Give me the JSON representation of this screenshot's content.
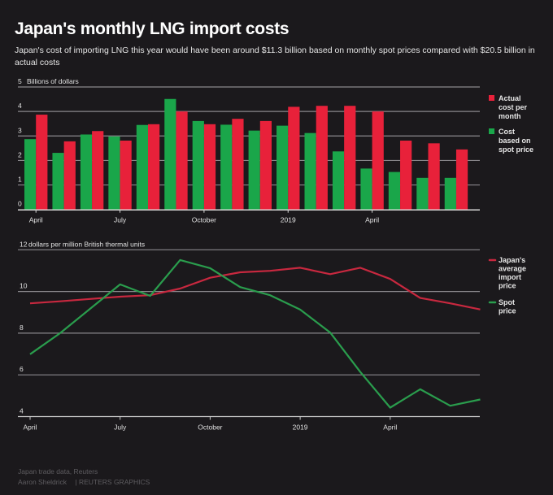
{
  "header": {
    "title": "Japan's monthly LNG import costs",
    "subtitle": "Japan's cost of importing LNG this year would have been around $11.3 billion based on monthly spot prices compared with $20.5 billion in actual costs"
  },
  "colors": {
    "background": "#1b191c",
    "actual": "#e8213a",
    "spot_bar": "#1aa64a",
    "import_line": "#c8283f",
    "spot_line": "#2a9d4d",
    "grid": "#8a888c"
  },
  "chart_data": [
    {
      "type": "bar",
      "title": "Billions of dollars",
      "ylabel": "Billions of dollars",
      "xlabel": "",
      "ylim": [
        0,
        5
      ],
      "yticks": [
        "0",
        "1",
        "2",
        "3",
        "4",
        "5"
      ],
      "grid": true,
      "categories": [
        "Apr 2018",
        "May 2018",
        "Jun 2018",
        "Jul 2018",
        "Aug 2018",
        "Sep 2018",
        "Oct 2018",
        "Nov 2018",
        "Dec 2018",
        "Jan 2019",
        "Feb 2019",
        "Mar 2019",
        "Apr 2019",
        "May 2019",
        "Jun 2019",
        "Jul 2019"
      ],
      "xtick_labels": [
        {
          "index": 0,
          "label": "April"
        },
        {
          "index": 3,
          "label": "July"
        },
        {
          "index": 6,
          "label": "October"
        },
        {
          "index": 9,
          "label": "2019"
        },
        {
          "index": 12,
          "label": "April"
        }
      ],
      "series": [
        {
          "name": "Cost based on spot price",
          "legend": [
            "Cost",
            "based on",
            "spot price"
          ],
          "color": "#1aa64a",
          "values": [
            2.87,
            2.31,
            3.06,
            2.98,
            3.45,
            4.51,
            3.61,
            3.46,
            3.22,
            3.42,
            3.12,
            2.37,
            1.67,
            1.53,
            1.29,
            1.29
          ]
        },
        {
          "name": "Actual cost per month",
          "legend": [
            "Actual",
            "cost per",
            "month"
          ],
          "color": "#e8213a",
          "values": [
            3.87,
            2.78,
            3.2,
            2.81,
            3.48,
            4.0,
            3.48,
            3.7,
            3.61,
            4.19,
            4.23,
            4.23,
            4.0,
            2.81,
            2.7,
            2.45
          ]
        }
      ],
      "legend_order": [
        1,
        0
      ],
      "legend_position": "right"
    },
    {
      "type": "line",
      "title": "dollars per million British thermal units",
      "ylabel": "dollars per million British thermal units",
      "xlabel": "",
      "ylim": [
        4,
        12
      ],
      "yticks": [
        "4",
        "6",
        "8",
        "10",
        "12"
      ],
      "grid": true,
      "categories": [
        "Apr 2018",
        "May 2018",
        "Jun 2018",
        "Jul 2018",
        "Aug 2018",
        "Sep 2018",
        "Oct 2018",
        "Nov 2018",
        "Dec 2018",
        "Jan 2019",
        "Feb 2019",
        "Mar 2019",
        "Apr 2019",
        "May 2019",
        "Jun 2019",
        "Jul 2019"
      ],
      "xtick_labels": [
        {
          "index": 0,
          "label": "April"
        },
        {
          "index": 3,
          "label": "July"
        },
        {
          "index": 6,
          "label": "October"
        },
        {
          "index": 9,
          "label": "2019"
        },
        {
          "index": 12,
          "label": "April"
        }
      ],
      "series": [
        {
          "name": "Japan's average import price",
          "legend": [
            "Japan's",
            "average",
            "import",
            "price"
          ],
          "color": "#c8283f",
          "values": [
            9.43,
            9.53,
            9.64,
            9.75,
            9.82,
            10.14,
            10.66,
            10.92,
            10.99,
            11.14,
            10.83,
            11.14,
            10.6,
            9.69,
            9.43,
            9.14
          ]
        },
        {
          "name": "Spot price",
          "legend": [
            "Spot",
            "price"
          ],
          "color": "#2a9d4d",
          "values": [
            6.99,
            8.0,
            9.17,
            10.34,
            9.79,
            11.51,
            11.12,
            10.21,
            9.82,
            9.13,
            8.03,
            6.15,
            4.43,
            5.31,
            4.52,
            4.82
          ]
        }
      ],
      "legend_position": "right"
    }
  ],
  "footer": {
    "source": "Japan trade data, Reuters",
    "credit": "Aaron Sheldrick",
    "agency": "| REUTERS GRAPHICS"
  }
}
